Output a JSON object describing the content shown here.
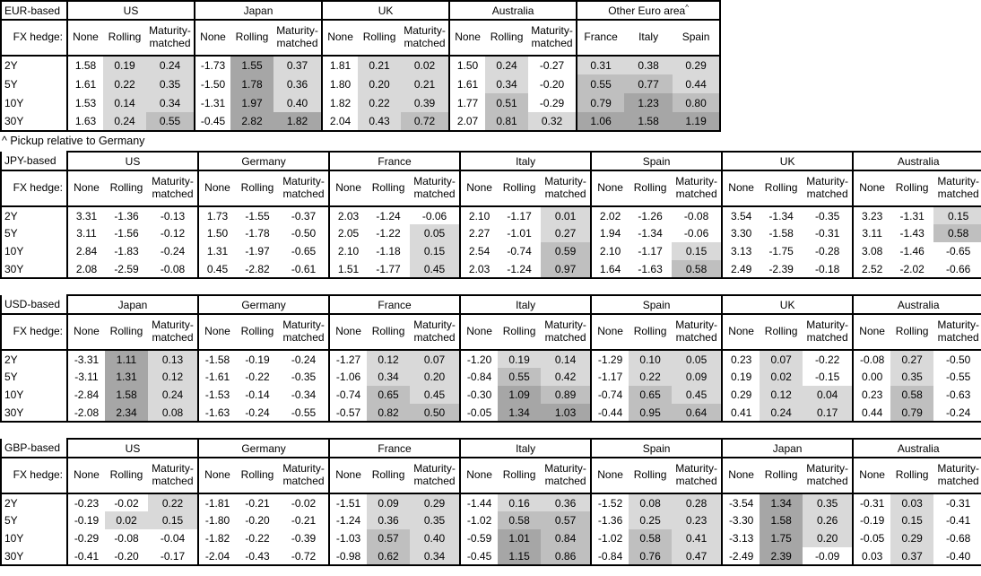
{
  "footnote": "^ Pickup relative to Germany",
  "fx_hedge_label": "FX hedge:",
  "row_labels": [
    "2Y",
    "5Y",
    "10Y",
    "30Y"
  ],
  "shading": {
    "light": "#d9d9d9",
    "medium": "#bfbfbf",
    "dark": "#a6a6a6",
    "rule": "cells in non-None columns: >1.0 dark, >=0.5 medium, >0 light, else white"
  },
  "tables": [
    {
      "base": "EUR-based",
      "groups": [
        {
          "name": "US",
          "cols": [
            "None",
            "Rolling",
            "Maturity-matched"
          ],
          "rows": [
            [
              "1.58",
              "0.19",
              "0.24"
            ],
            [
              "1.61",
              "0.22",
              "0.35"
            ],
            [
              "1.53",
              "0.14",
              "0.34"
            ],
            [
              "1.63",
              "0.24",
              "0.55"
            ]
          ]
        },
        {
          "name": "Japan",
          "cols": [
            "None",
            "Rolling",
            "Maturity-matched"
          ],
          "rows": [
            [
              "-1.73",
              "1.55",
              "0.37"
            ],
            [
              "-1.50",
              "1.78",
              "0.36"
            ],
            [
              "-1.31",
              "1.97",
              "0.40"
            ],
            [
              "-0.45",
              "2.82",
              "1.82"
            ]
          ]
        },
        {
          "name": "UK",
          "cols": [
            "None",
            "Rolling",
            "Maturity-matched"
          ],
          "rows": [
            [
              "1.81",
              "0.21",
              "0.02"
            ],
            [
              "1.80",
              "0.20",
              "0.21"
            ],
            [
              "1.82",
              "0.22",
              "0.39"
            ],
            [
              "2.04",
              "0.43",
              "0.72"
            ]
          ]
        },
        {
          "name": "Australia",
          "cols": [
            "None",
            "Rolling",
            "Maturity-matched"
          ],
          "rows": [
            [
              "1.50",
              "0.24",
              "-0.27"
            ],
            [
              "1.61",
              "0.34",
              "-0.20"
            ],
            [
              "1.77",
              "0.51",
              "-0.29"
            ],
            [
              "2.07",
              "0.81",
              "0.32"
            ]
          ]
        },
        {
          "name": "Other Euro area",
          "sup": "^",
          "cols": [
            "France",
            "Italy",
            "Spain"
          ],
          "rows": [
            [
              "0.31",
              "0.38",
              "0.29"
            ],
            [
              "0.55",
              "0.77",
              "0.44"
            ],
            [
              "0.79",
              "1.23",
              "0.80"
            ],
            [
              "1.06",
              "1.58",
              "1.19"
            ]
          ]
        }
      ]
    },
    {
      "base": "JPY-based",
      "groups": [
        {
          "name": "US",
          "cols": [
            "None",
            "Rolling",
            "Maturity-matched"
          ],
          "rows": [
            [
              "3.31",
              "-1.36",
              "-0.13"
            ],
            [
              "3.11",
              "-1.56",
              "-0.12"
            ],
            [
              "2.84",
              "-1.83",
              "-0.24"
            ],
            [
              "2.08",
              "-2.59",
              "-0.08"
            ]
          ]
        },
        {
          "name": "Germany",
          "cols": [
            "None",
            "Rolling",
            "Maturity-matched"
          ],
          "rows": [
            [
              "1.73",
              "-1.55",
              "-0.37"
            ],
            [
              "1.50",
              "-1.78",
              "-0.50"
            ],
            [
              "1.31",
              "-1.97",
              "-0.65"
            ],
            [
              "0.45",
              "-2.82",
              "-0.61"
            ]
          ]
        },
        {
          "name": "France",
          "cols": [
            "None",
            "Rolling",
            "Maturity-matched"
          ],
          "rows": [
            [
              "2.03",
              "-1.24",
              "-0.06"
            ],
            [
              "2.05",
              "-1.22",
              "0.05"
            ],
            [
              "2.10",
              "-1.18",
              "0.15"
            ],
            [
              "1.51",
              "-1.77",
              "0.45"
            ]
          ]
        },
        {
          "name": "Italy",
          "cols": [
            "None",
            "Rolling",
            "Maturity-matched"
          ],
          "rows": [
            [
              "2.10",
              "-1.17",
              "0.01"
            ],
            [
              "2.27",
              "-1.01",
              "0.27"
            ],
            [
              "2.54",
              "-0.74",
              "0.59"
            ],
            [
              "2.03",
              "-1.24",
              "0.97"
            ]
          ]
        },
        {
          "name": "Spain",
          "cols": [
            "None",
            "Rolling",
            "Maturity-matched"
          ],
          "rows": [
            [
              "2.02",
              "-1.26",
              "-0.08"
            ],
            [
              "1.94",
              "-1.34",
              "-0.06"
            ],
            [
              "2.10",
              "-1.17",
              "0.15"
            ],
            [
              "1.64",
              "-1.63",
              "0.58"
            ]
          ]
        },
        {
          "name": "UK",
          "cols": [
            "None",
            "Rolling",
            "Maturity-matched"
          ],
          "rows": [
            [
              "3.54",
              "-1.34",
              "-0.35"
            ],
            [
              "3.30",
              "-1.58",
              "-0.31"
            ],
            [
              "3.13",
              "-1.75",
              "-0.28"
            ],
            [
              "2.49",
              "-2.39",
              "-0.18"
            ]
          ]
        },
        {
          "name": "Australia",
          "cols": [
            "None",
            "Rolling",
            "Maturity-matched"
          ],
          "rows": [
            [
              "3.23",
              "-1.31",
              "0.15"
            ],
            [
              "3.11",
              "-1.43",
              "0.58"
            ],
            [
              "3.08",
              "-1.46",
              "-0.65"
            ],
            [
              "2.52",
              "-2.02",
              "-0.66"
            ]
          ]
        }
      ]
    },
    {
      "base": "USD-based",
      "groups": [
        {
          "name": "Japan",
          "cols": [
            "None",
            "Rolling",
            "Maturity-matched"
          ],
          "rows": [
            [
              "-3.31",
              "1.11",
              "0.13"
            ],
            [
              "-3.11",
              "1.31",
              "0.12"
            ],
            [
              "-2.84",
              "1.58",
              "0.24"
            ],
            [
              "-2.08",
              "2.34",
              "0.08"
            ]
          ]
        },
        {
          "name": "Germany",
          "cols": [
            "None",
            "Rolling",
            "Maturity-matched"
          ],
          "rows": [
            [
              "-1.58",
              "-0.19",
              "-0.24"
            ],
            [
              "-1.61",
              "-0.22",
              "-0.35"
            ],
            [
              "-1.53",
              "-0.14",
              "-0.34"
            ],
            [
              "-1.63",
              "-0.24",
              "-0.55"
            ]
          ]
        },
        {
          "name": "France",
          "cols": [
            "None",
            "Rolling",
            "Maturity-matched"
          ],
          "rows": [
            [
              "-1.27",
              "0.12",
              "0.07"
            ],
            [
              "-1.06",
              "0.34",
              "0.20"
            ],
            [
              "-0.74",
              "0.65",
              "0.45"
            ],
            [
              "-0.57",
              "0.82",
              "0.50"
            ]
          ]
        },
        {
          "name": "Italy",
          "cols": [
            "None",
            "Rolling",
            "Maturity-matched"
          ],
          "rows": [
            [
              "-1.20",
              "0.19",
              "0.14"
            ],
            [
              "-0.84",
              "0.55",
              "0.42"
            ],
            [
              "-0.30",
              "1.09",
              "0.89"
            ],
            [
              "-0.05",
              "1.34",
              "1.03"
            ]
          ]
        },
        {
          "name": "Spain",
          "cols": [
            "None",
            "Rolling",
            "Maturity-matched"
          ],
          "rows": [
            [
              "-1.29",
              "0.10",
              "0.05"
            ],
            [
              "-1.17",
              "0.22",
              "0.09"
            ],
            [
              "-0.74",
              "0.65",
              "0.45"
            ],
            [
              "-0.44",
              "0.95",
              "0.64"
            ]
          ]
        },
        {
          "name": "UK",
          "cols": [
            "None",
            "Rolling",
            "Maturity-matched"
          ],
          "rows": [
            [
              "0.23",
              "0.07",
              "-0.22"
            ],
            [
              "0.19",
              "0.02",
              "-0.15"
            ],
            [
              "0.29",
              "0.12",
              "0.04"
            ],
            [
              "0.41",
              "0.24",
              "0.17"
            ]
          ]
        },
        {
          "name": "Australia",
          "cols": [
            "None",
            "Rolling",
            "Maturity-matched"
          ],
          "rows": [
            [
              "-0.08",
              "0.27",
              "-0.50"
            ],
            [
              "0.00",
              "0.35",
              "-0.55"
            ],
            [
              "0.23",
              "0.58",
              "-0.63"
            ],
            [
              "0.44",
              "0.79",
              "-0.24"
            ]
          ]
        }
      ]
    },
    {
      "base": "GBP-based",
      "groups": [
        {
          "name": "US",
          "cols": [
            "None",
            "Rolling",
            "Maturity-matched"
          ],
          "rows": [
            [
              "-0.23",
              "-0.02",
              "0.22"
            ],
            [
              "-0.19",
              "0.02",
              "0.15"
            ],
            [
              "-0.29",
              "-0.08",
              "-0.04"
            ],
            [
              "-0.41",
              "-0.20",
              "-0.17"
            ]
          ]
        },
        {
          "name": "Germany",
          "cols": [
            "None",
            "Rolling",
            "Maturity-matched"
          ],
          "rows": [
            [
              "-1.81",
              "-0.21",
              "-0.02"
            ],
            [
              "-1.80",
              "-0.20",
              "-0.21"
            ],
            [
              "-1.82",
              "-0.22",
              "-0.39"
            ],
            [
              "-2.04",
              "-0.43",
              "-0.72"
            ]
          ]
        },
        {
          "name": "France",
          "cols": [
            "None",
            "Rolling",
            "Maturity-matched"
          ],
          "rows": [
            [
              "-1.51",
              "0.09",
              "0.29"
            ],
            [
              "-1.24",
              "0.36",
              "0.35"
            ],
            [
              "-1.03",
              "0.57",
              "0.40"
            ],
            [
              "-0.98",
              "0.62",
              "0.34"
            ]
          ]
        },
        {
          "name": "Italy",
          "cols": [
            "None",
            "Rolling",
            "Maturity-matched"
          ],
          "rows": [
            [
              "-1.44",
              "0.16",
              "0.36"
            ],
            [
              "-1.02",
              "0.58",
              "0.57"
            ],
            [
              "-0.59",
              "1.01",
              "0.84"
            ],
            [
              "-0.45",
              "1.15",
              "0.86"
            ]
          ]
        },
        {
          "name": "Spain",
          "cols": [
            "None",
            "Rolling",
            "Maturity-matched"
          ],
          "rows": [
            [
              "-1.52",
              "0.08",
              "0.28"
            ],
            [
              "-1.36",
              "0.25",
              "0.23"
            ],
            [
              "-1.02",
              "0.58",
              "0.41"
            ],
            [
              "-0.84",
              "0.76",
              "0.47"
            ]
          ]
        },
        {
          "name": "Japan",
          "cols": [
            "None",
            "Rolling",
            "Maturity-matched"
          ],
          "rows": [
            [
              "-3.54",
              "1.34",
              "0.35"
            ],
            [
              "-3.30",
              "1.58",
              "0.26"
            ],
            [
              "-3.13",
              "1.75",
              "0.20"
            ],
            [
              "-2.49",
              "2.39",
              "-0.09"
            ]
          ]
        },
        {
          "name": "Australia",
          "cols": [
            "None",
            "Rolling",
            "Maturity-matched"
          ],
          "rows": [
            [
              "-0.31",
              "0.03",
              "-0.31"
            ],
            [
              "-0.19",
              "0.15",
              "-0.41"
            ],
            [
              "-0.05",
              "0.29",
              "-0.68"
            ],
            [
              "0.03",
              "0.37",
              "-0.40"
            ]
          ]
        }
      ]
    }
  ]
}
